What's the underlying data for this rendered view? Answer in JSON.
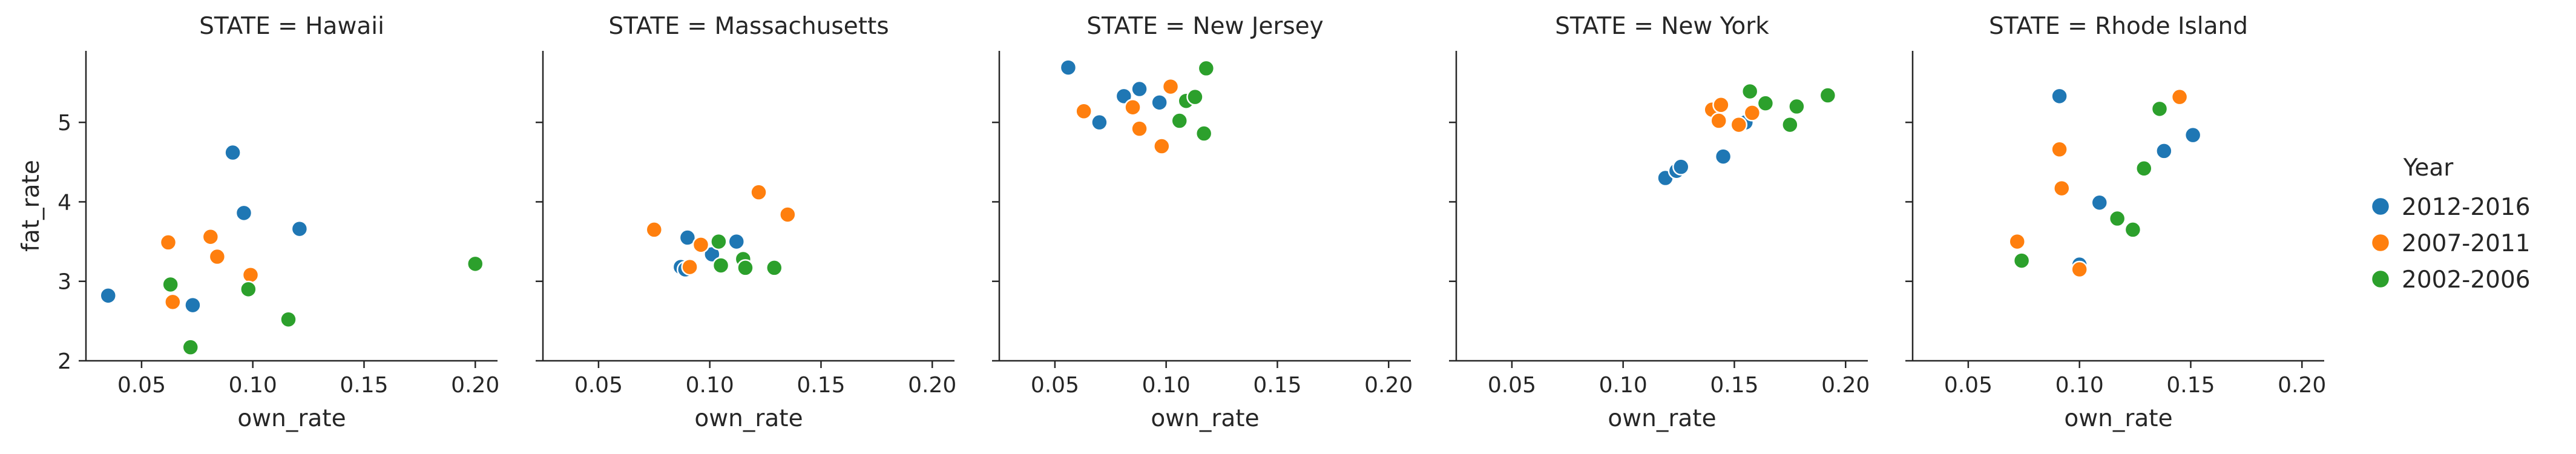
{
  "chart_data": {
    "type": "scatter",
    "facet_label": "STATE",
    "xlabel": "own_rate",
    "ylabel": "fat_rate",
    "xlim": [
      0.025,
      0.21
    ],
    "ylim": [
      2.0,
      5.9
    ],
    "xticks": [
      0.05,
      0.1,
      0.15,
      0.2
    ],
    "yticks": [
      2,
      3,
      4,
      5
    ],
    "x_tick_labels": [
      "0.05",
      "0.10",
      "0.15",
      "0.20"
    ],
    "y_tick_labels": [
      "2",
      "3",
      "4",
      "5"
    ],
    "grid": false,
    "legend": {
      "title": "Year",
      "position": "right",
      "entries": [
        {
          "label": "2012-2016",
          "color": "#1f77b4"
        },
        {
          "label": "2007-2011",
          "color": "#ff7f0e"
        },
        {
          "label": "2002-2006",
          "color": "#2ca02c"
        }
      ]
    },
    "panels": [
      {
        "title": "STATE = Hawaii",
        "series": [
          {
            "name": "2012-2016",
            "points": [
              [
                0.035,
                2.82
              ],
              [
                0.073,
                2.7
              ],
              [
                0.091,
                4.62
              ],
              [
                0.096,
                3.86
              ],
              [
                0.121,
                3.66
              ]
            ]
          },
          {
            "name": "2007-2011",
            "points": [
              [
                0.062,
                3.49
              ],
              [
                0.064,
                2.74
              ],
              [
                0.081,
                3.56
              ],
              [
                0.084,
                3.31
              ],
              [
                0.099,
                3.08
              ]
            ]
          },
          {
            "name": "2002-2006",
            "points": [
              [
                0.063,
                2.96
              ],
              [
                0.072,
                2.17
              ],
              [
                0.098,
                2.9
              ],
              [
                0.116,
                2.52
              ],
              [
                0.2,
                3.22
              ]
            ]
          }
        ]
      },
      {
        "title": "STATE = Massachusetts",
        "series": [
          {
            "name": "2012-2016",
            "points": [
              [
                0.087,
                3.18
              ],
              [
                0.09,
                3.55
              ],
              [
                0.101,
                3.34
              ],
              [
                0.112,
                3.5
              ],
              [
                0.089,
                3.15
              ]
            ]
          },
          {
            "name": "2007-2011",
            "points": [
              [
                0.075,
                3.65
              ],
              [
                0.091,
                3.18
              ],
              [
                0.096,
                3.46
              ],
              [
                0.122,
                4.12
              ],
              [
                0.135,
                3.84
              ]
            ]
          },
          {
            "name": "2002-2006",
            "points": [
              [
                0.104,
                3.5
              ],
              [
                0.105,
                3.2
              ],
              [
                0.115,
                3.28
              ],
              [
                0.116,
                3.17
              ],
              [
                0.129,
                3.17
              ]
            ]
          }
        ]
      },
      {
        "title": "STATE = New Jersey",
        "series": [
          {
            "name": "2012-2016",
            "points": [
              [
                0.056,
                5.69
              ],
              [
                0.07,
                5.0
              ],
              [
                0.081,
                5.33
              ],
              [
                0.088,
                5.42
              ],
              [
                0.097,
                5.25
              ]
            ]
          },
          {
            "name": "2007-2011",
            "points": [
              [
                0.063,
                5.14
              ],
              [
                0.085,
                5.19
              ],
              [
                0.088,
                4.92
              ],
              [
                0.098,
                4.7
              ],
              [
                0.102,
                5.45
              ]
            ]
          },
          {
            "name": "2002-2006",
            "points": [
              [
                0.106,
                5.02
              ],
              [
                0.109,
                5.27
              ],
              [
                0.113,
                5.32
              ],
              [
                0.117,
                4.86
              ],
              [
                0.118,
                5.68
              ]
            ]
          }
        ]
      },
      {
        "title": "STATE = New York",
        "series": [
          {
            "name": "2012-2016",
            "points": [
              [
                0.119,
                4.3
              ],
              [
                0.124,
                4.39
              ],
              [
                0.126,
                4.44
              ],
              [
                0.145,
                4.57
              ],
              [
                0.155,
                5.0
              ]
            ]
          },
          {
            "name": "2007-2011",
            "points": [
              [
                0.14,
                5.16
              ],
              [
                0.143,
                5.02
              ],
              [
                0.144,
                5.22
              ],
              [
                0.152,
                4.97
              ],
              [
                0.158,
                5.12
              ]
            ]
          },
          {
            "name": "2002-2006",
            "points": [
              [
                0.157,
                5.39
              ],
              [
                0.164,
                5.24
              ],
              [
                0.175,
                4.97
              ],
              [
                0.178,
                5.2
              ],
              [
                0.192,
                5.34
              ]
            ]
          }
        ]
      },
      {
        "title": "STATE = Rhode Island",
        "series": [
          {
            "name": "2012-2016",
            "points": [
              [
                0.091,
                5.33
              ],
              [
                0.1,
                3.21
              ],
              [
                0.109,
                3.99
              ],
              [
                0.138,
                4.64
              ],
              [
                0.151,
                4.84
              ]
            ]
          },
          {
            "name": "2007-2011",
            "points": [
              [
                0.072,
                3.5
              ],
              [
                0.091,
                4.66
              ],
              [
                0.092,
                4.17
              ],
              [
                0.1,
                3.15
              ],
              [
                0.145,
                5.32
              ]
            ]
          },
          {
            "name": "2002-2006",
            "points": [
              [
                0.074,
                3.26
              ],
              [
                0.117,
                3.79
              ],
              [
                0.124,
                3.65
              ],
              [
                0.129,
                4.42
              ],
              [
                0.136,
                5.17
              ]
            ]
          }
        ]
      }
    ]
  }
}
